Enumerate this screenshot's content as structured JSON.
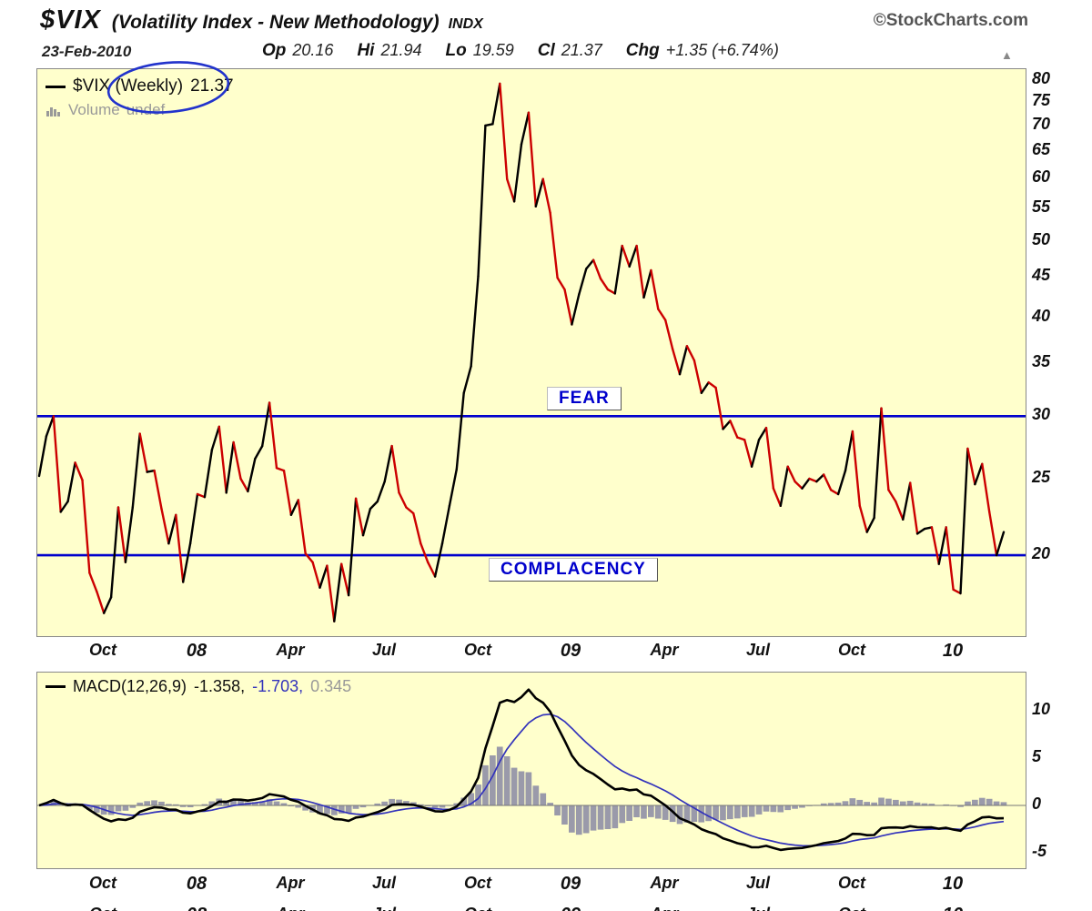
{
  "header": {
    "symbol": "$VIX",
    "title": "(Volatility Index - New Methodology)",
    "exchange": "INDX",
    "copyright": "©StockCharts.com",
    "date": "23-Feb-2010",
    "quote": {
      "op_label": "Op",
      "op": "20.16",
      "hi_label": "Hi",
      "hi": "21.94",
      "lo_label": "Lo",
      "lo": "19.59",
      "cl_label": "Cl",
      "cl": "21.37",
      "chg_label": "Chg",
      "chg": "+1.35 (+6.74%)"
    },
    "arrow_icon": "▲"
  },
  "main_chart": {
    "legend_series": "$VIX (Weekly)",
    "legend_value": "21.37",
    "volume_label": "Volume",
    "volume_value": "undef",
    "fear_label": "FEAR",
    "complacency_label": "COMPLACENCY"
  },
  "macd_panel": {
    "legend_label": "MACD(12,26,9)",
    "macd_value": "-1.358,",
    "signal_value": "-1.703,",
    "hist_value": "0.345"
  },
  "chart_data": {
    "type": "line",
    "title": "$VIX (Weekly) - Volatility Index New Methodology",
    "scale": "log",
    "y_ticks_main": [
      80,
      75,
      70,
      65,
      60,
      55,
      50,
      45,
      40,
      35,
      30,
      25,
      20
    ],
    "y_range_main": [
      15.8,
      82.5
    ],
    "hlines": [
      {
        "value": 30,
        "label": "FEAR",
        "color": "#0000cc"
      },
      {
        "value": 20,
        "label": "COMPLACENCY",
        "color": "#0000cc"
      }
    ],
    "colors": {
      "up": "#000000",
      "down": "#cc0000",
      "background": "#ffffcc",
      "border": "#888888"
    },
    "x_ticks": [
      {
        "label": "Oct",
        "week": 9,
        "year": false
      },
      {
        "label": "08",
        "week": 22,
        "year": true
      },
      {
        "label": "Apr",
        "week": 35,
        "year": false
      },
      {
        "label": "Jul",
        "week": 48,
        "year": false
      },
      {
        "label": "Oct",
        "week": 61,
        "year": false
      },
      {
        "label": "09",
        "week": 74,
        "year": true
      },
      {
        "label": "Apr",
        "week": 87,
        "year": false
      },
      {
        "label": "Jul",
        "week": 100,
        "year": false
      },
      {
        "label": "Oct",
        "week": 113,
        "year": false
      },
      {
        "label": "10",
        "week": 127,
        "year": true
      }
    ],
    "weekly_close": [
      25.2,
      28.3,
      30.0,
      22.7,
      23.4,
      26.2,
      24.9,
      19.0,
      18.0,
      16.9,
      17.7,
      23.0,
      19.6,
      23.0,
      28.5,
      25.5,
      25.6,
      22.9,
      20.7,
      22.5,
      18.5,
      20.7,
      23.9,
      23.7,
      27.2,
      29.1,
      24.0,
      27.8,
      25.0,
      24.1,
      26.5,
      27.5,
      31.2,
      25.8,
      25.6,
      22.5,
      23.5,
      20.1,
      19.6,
      18.2,
      19.4,
      16.5,
      19.5,
      17.8,
      23.6,
      21.2,
      22.9,
      23.4,
      24.8,
      27.5,
      24.0,
      23.0,
      22.6,
      20.7,
      19.6,
      18.8,
      20.7,
      23.1,
      25.7,
      32.1,
      34.7,
      45.1,
      70.0,
      70.3,
      79.1,
      59.9,
      56.1,
      66.3,
      72.7,
      55.3,
      59.9,
      54.3,
      44.9,
      43.4,
      39.2,
      42.8,
      46.1,
      47.3,
      44.8,
      43.4,
      42.9,
      49.3,
      46.4,
      49.3,
      42.4,
      45.9,
      41.0,
      39.7,
      36.5,
      33.9,
      36.8,
      35.3,
      32.1,
      33.1,
      32.6,
      28.9,
      29.6,
      28.2,
      28.0,
      25.9,
      28.0,
      29.0,
      24.3,
      23.1,
      25.9,
      24.8,
      24.3,
      25.0,
      24.8,
      25.3,
      24.2,
      23.9,
      25.6,
      28.7,
      23.1,
      21.4,
      22.3,
      30.7,
      24.2,
      23.4,
      22.2,
      24.7,
      21.3,
      21.6,
      21.7,
      19.5,
      21.7,
      18.1,
      17.9,
      27.3,
      24.6,
      26.1,
      22.7,
      20.0,
      21.4
    ],
    "macd": {
      "label": "MACD(12,26,9)",
      "params": [
        12,
        26,
        9
      ],
      "macd": -1.358,
      "signal": -1.703,
      "histogram": 0.345,
      "y_ticks": [
        10,
        5,
        0,
        -5
      ],
      "y_range": [
        -6.8,
        14.0
      ],
      "macd_color": "#000000",
      "signal_color": "#3333bb",
      "hist_color": "#9a9aaa",
      "zero_color": "#777777"
    }
  }
}
